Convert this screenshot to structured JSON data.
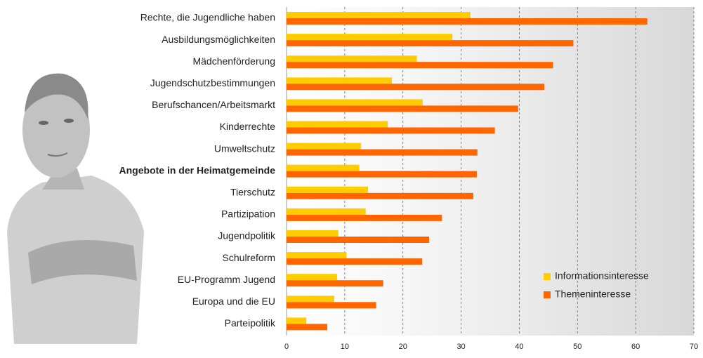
{
  "chart_data": {
    "type": "grouped-horizontal-bar",
    "categories": [
      "Rechte, die Jugendliche haben",
      "Ausbildungsmöglichkeiten",
      "Mädchenförderung",
      "Jugendschutzbestimmungen",
      "Berufschancen/Arbeitsmarkt",
      "Kinderrechte",
      "Umweltschutz",
      "Angebote in der Heimatgemeinde",
      "Tierschutz",
      "Partizipation",
      "Jugendpolitik",
      "Schulreform",
      "EU-Programm Jugend",
      "Europa und die EU",
      "Parteipolitik"
    ],
    "series": [
      {
        "name": "Informationsinteresse",
        "color": "#ffcc00",
        "values": [
          31.6,
          28.5,
          22.4,
          18.1,
          23.4,
          17.4,
          12.8,
          12.5,
          14.0,
          13.6,
          8.9,
          10.3,
          8.7,
          8.2,
          3.4
        ]
      },
      {
        "name": "Themeninteresse",
        "color": "#ff6600",
        "values": [
          62.0,
          49.3,
          45.8,
          44.3,
          39.8,
          35.8,
          32.8,
          32.7,
          32.1,
          26.7,
          24.5,
          23.3,
          16.6,
          15.4,
          7.0
        ]
      }
    ],
    "xlim": [
      0,
      70
    ],
    "xticks": [
      0,
      10,
      20,
      30,
      40,
      50,
      60,
      70
    ],
    "grid": true,
    "bold_category_index": 7,
    "legend": "lower-right"
  }
}
